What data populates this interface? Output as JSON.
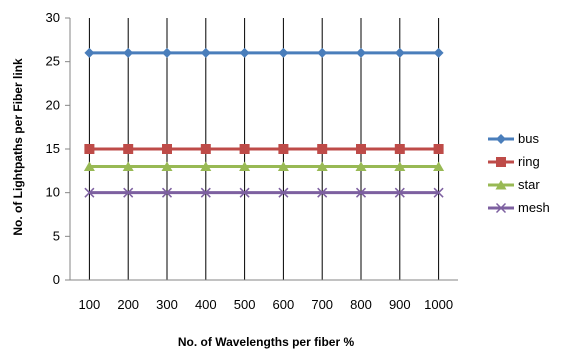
{
  "chart_data": {
    "type": "line",
    "title": "",
    "xlabel": "No. of Wavelengths per fiber %",
    "ylabel": "No. of Lightpaths per Fiber link",
    "categories": [
      "100",
      "200",
      "300",
      "400",
      "500",
      "600",
      "700",
      "800",
      "900",
      "1000"
    ],
    "ylim": [
      0,
      30
    ],
    "yticks": [
      "0",
      "5",
      "10",
      "15",
      "20",
      "25",
      "30"
    ],
    "grid": "vertical",
    "legend_position": "right",
    "series": [
      {
        "name": "bus",
        "values": [
          26,
          26,
          26,
          26,
          26,
          26,
          26,
          26,
          26,
          26
        ],
        "color": "#4a7ebb",
        "marker": "diamond"
      },
      {
        "name": "ring",
        "values": [
          15,
          15,
          15,
          15,
          15,
          15,
          15,
          15,
          15,
          15
        ],
        "color": "#be4b48",
        "marker": "square"
      },
      {
        "name": "star",
        "values": [
          13,
          13,
          13,
          13,
          13,
          13,
          13,
          13,
          13,
          13
        ],
        "color": "#98b954",
        "marker": "triangle"
      },
      {
        "name": "mesh",
        "values": [
          10,
          10,
          10,
          10,
          10,
          10,
          10,
          10,
          10,
          10
        ],
        "color": "#7d60a0",
        "marker": "x"
      }
    ]
  }
}
